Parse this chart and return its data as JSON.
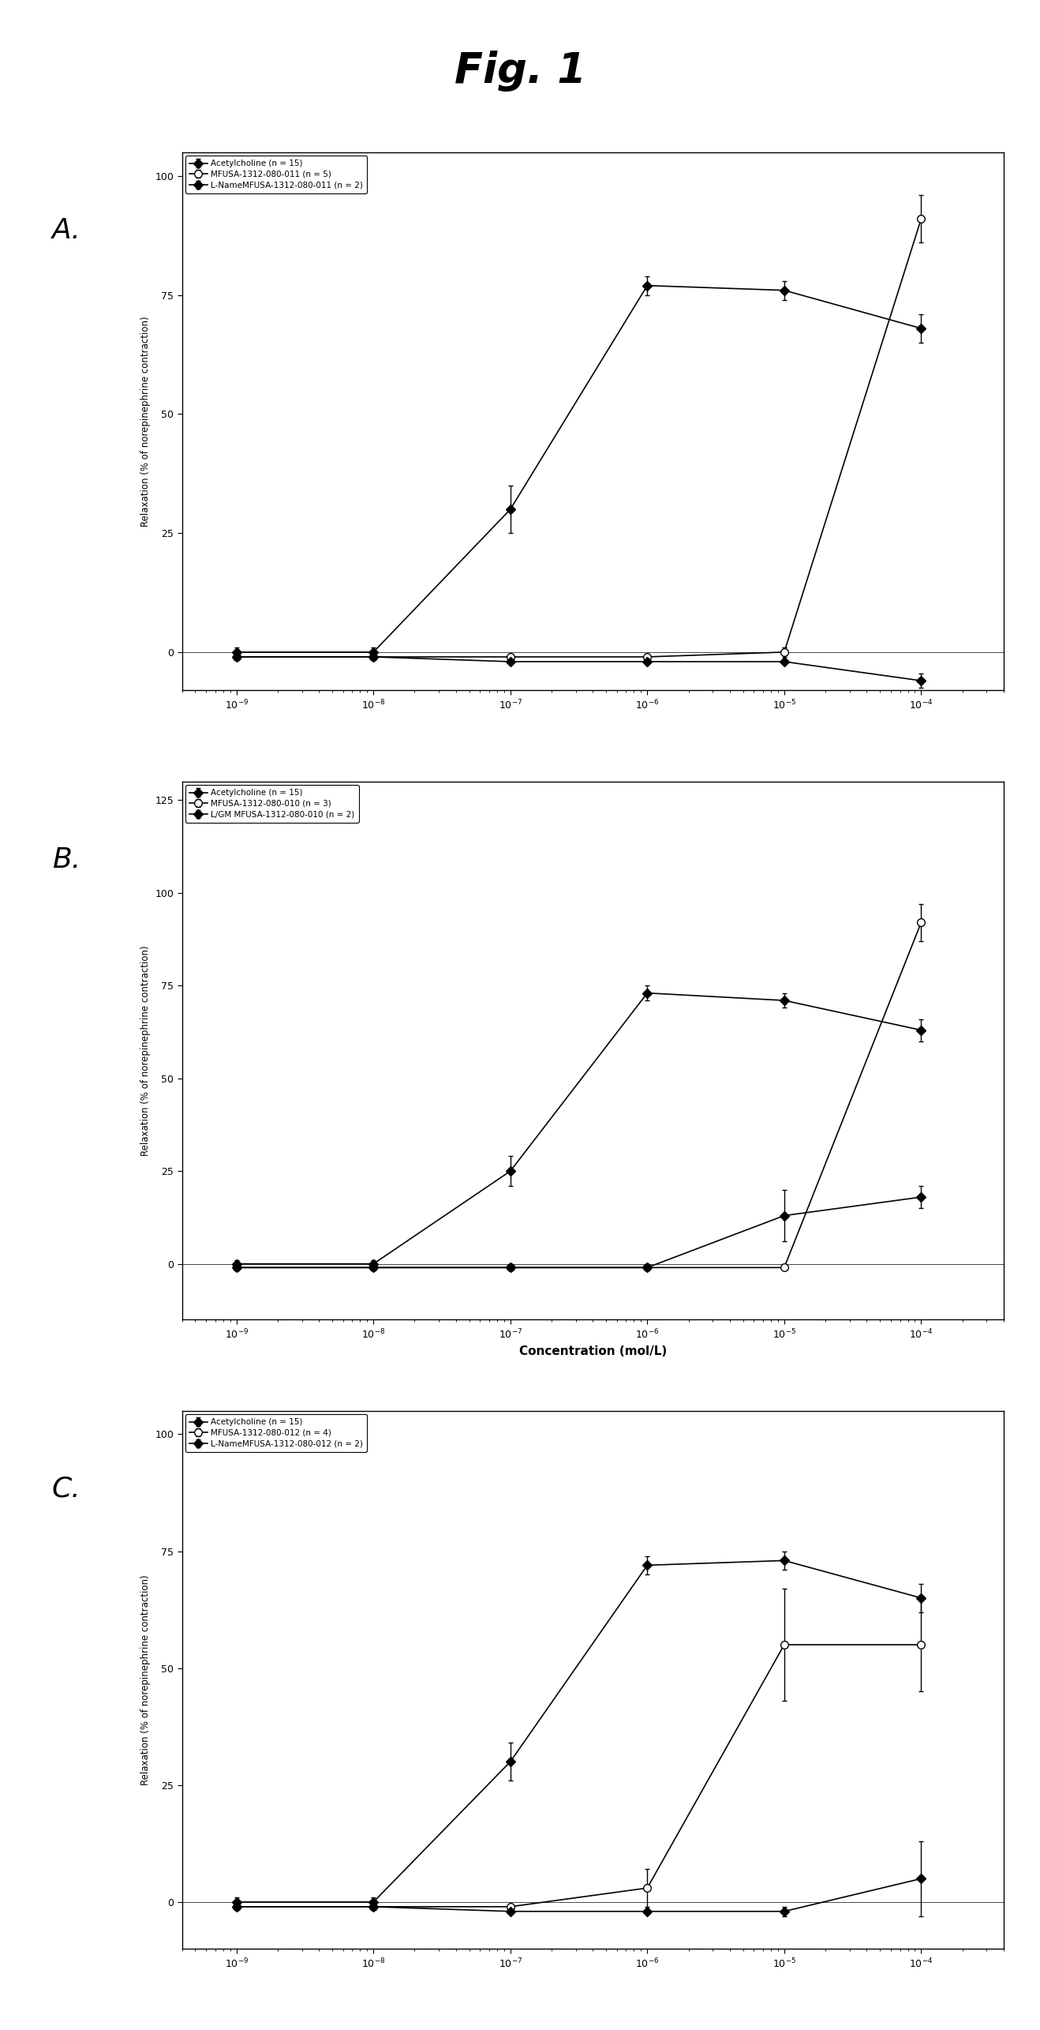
{
  "panels": [
    {
      "label": "A.",
      "ylim": [
        -8,
        105
      ],
      "yticks": [
        0,
        25,
        50,
        75,
        100
      ],
      "ylabel": "Relaxation (% of norepinephrine contraction)",
      "xlabel": "",
      "series": [
        {
          "label": "Acetylcholine (n = 15)",
          "x": [
            1e-09,
            1e-08,
            1e-07,
            1e-06,
            1e-05,
            0.0001
          ],
          "y": [
            0,
            0,
            30,
            77,
            76,
            68
          ],
          "yerr": [
            1,
            1,
            5,
            2,
            2,
            3
          ],
          "marker": "D",
          "filled": true
        },
        {
          "label": "MFUSA-1312-080-011 (n = 5)",
          "x": [
            1e-09,
            1e-08,
            1e-07,
            1e-06,
            1e-05,
            0.0001
          ],
          "y": [
            -1,
            -1,
            -1,
            -1,
            0,
            91
          ],
          "yerr": [
            0.5,
            0.5,
            0.5,
            0.5,
            1,
            5
          ],
          "marker": "o",
          "filled": false
        },
        {
          "label": "L-NameMFUSA-1312-080-011 (n = 2)",
          "x": [
            1e-09,
            1e-08,
            1e-07,
            1e-06,
            1e-05,
            0.0001
          ],
          "y": [
            -1,
            -1,
            -2,
            -2,
            -2,
            -6
          ],
          "yerr": [
            0.5,
            0.5,
            0.5,
            0.5,
            0.5,
            1.5
          ],
          "marker": "D",
          "filled": true
        }
      ]
    },
    {
      "label": "B.",
      "ylim": [
        -15,
        130
      ],
      "yticks": [
        0,
        25,
        50,
        75,
        100,
        125
      ],
      "ylabel": "Relaxation (% of norepinephrine contraction)",
      "xlabel": "Concentration (mol/L)",
      "series": [
        {
          "label": "Acetylcholine (n = 15)",
          "x": [
            1e-09,
            1e-08,
            1e-07,
            1e-06,
            1e-05,
            0.0001
          ],
          "y": [
            0,
            0,
            25,
            73,
            71,
            63
          ],
          "yerr": [
            1,
            1,
            4,
            2,
            2,
            3
          ],
          "marker": "D",
          "filled": true
        },
        {
          "label": "MFUSA-1312-080-010 (n = 3)",
          "x": [
            1e-09,
            1e-08,
            1e-07,
            1e-06,
            1e-05,
            0.0001
          ],
          "y": [
            -1,
            -1,
            -1,
            -1,
            -1,
            92
          ],
          "yerr": [
            0.5,
            0.5,
            0.5,
            0.5,
            0.5,
            5
          ],
          "marker": "o",
          "filled": false
        },
        {
          "label": "L/GM MFUSA-1312-080-010 (n = 2)",
          "x": [
            1e-09,
            1e-08,
            1e-07,
            1e-06,
            1e-05,
            0.0001
          ],
          "y": [
            -1,
            -1,
            -1,
            -1,
            13,
            18
          ],
          "yerr": [
            0.5,
            0.5,
            0.5,
            0.5,
            7,
            3
          ],
          "marker": "D",
          "filled": true
        }
      ]
    },
    {
      "label": "C.",
      "ylim": [
        -10,
        105
      ],
      "yticks": [
        0,
        25,
        50,
        75,
        100
      ],
      "ylabel": "Relaxation (% of norepinephrine contraction)",
      "xlabel": "",
      "series": [
        {
          "label": "Acetylcholine (n = 15)",
          "x": [
            1e-09,
            1e-08,
            1e-07,
            1e-06,
            1e-05,
            0.0001
          ],
          "y": [
            0,
            0,
            30,
            72,
            73,
            65
          ],
          "yerr": [
            1,
            1,
            4,
            2,
            2,
            3
          ],
          "marker": "D",
          "filled": true
        },
        {
          "label": "MFUSA-1312-080-012 (n = 4)",
          "x": [
            1e-09,
            1e-08,
            1e-07,
            1e-06,
            1e-05,
            0.0001
          ],
          "y": [
            -1,
            -1,
            -1,
            3,
            55,
            55
          ],
          "yerr": [
            0.5,
            0.5,
            0.5,
            4,
            12,
            10
          ],
          "marker": "o",
          "filled": false
        },
        {
          "label": "L-NameMFUSA-1312-080-012 (n = 2)",
          "x": [
            1e-09,
            1e-08,
            1e-07,
            1e-06,
            1e-05,
            0.0001
          ],
          "y": [
            -1,
            -1,
            -2,
            -2,
            -2,
            5
          ],
          "yerr": [
            0.5,
            0.5,
            0.5,
            0.5,
            1,
            8
          ],
          "marker": "D",
          "filled": true
        }
      ]
    }
  ]
}
